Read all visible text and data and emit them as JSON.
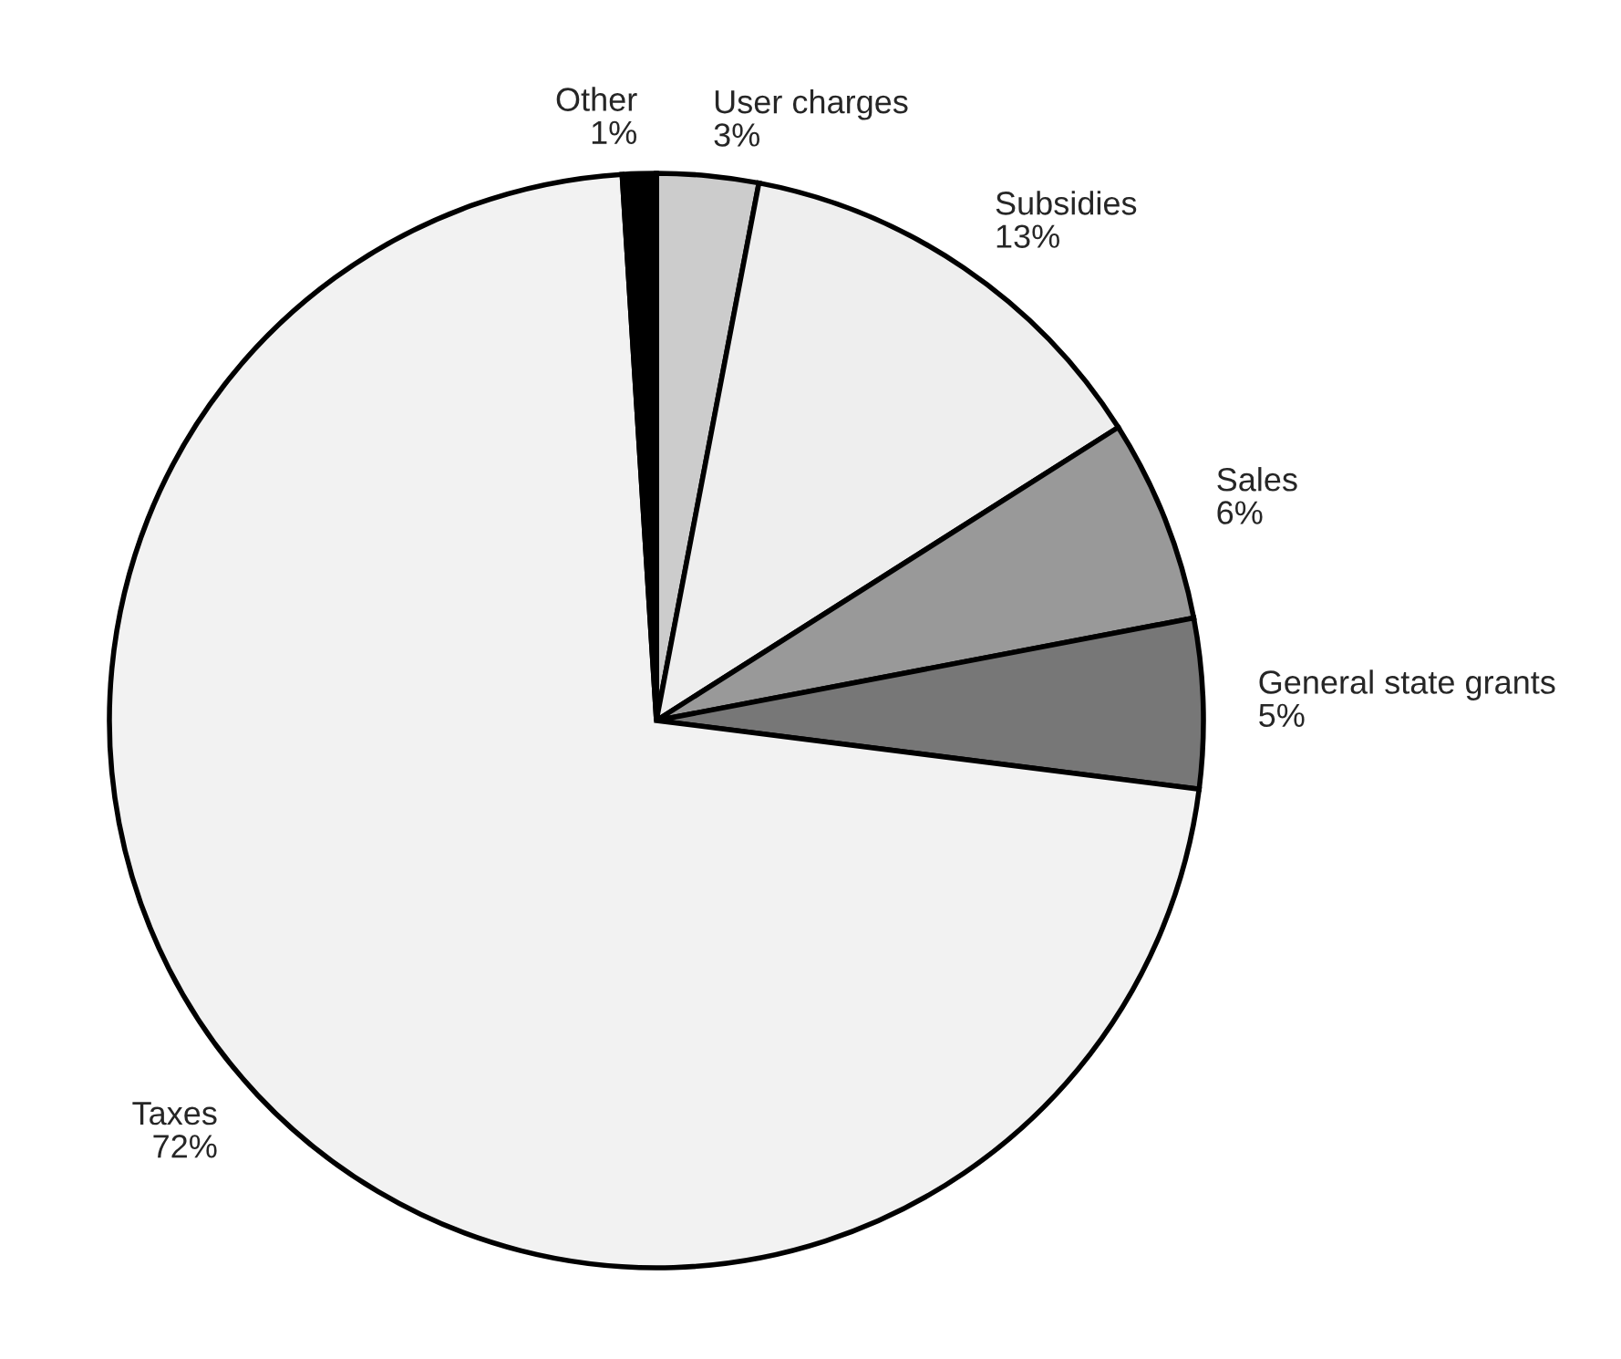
{
  "chart_data": {
    "type": "pie",
    "categories": [
      "User charges",
      "Subsidies",
      "Sales",
      "General state grants",
      "Taxes",
      "Other"
    ],
    "values": [
      3,
      13,
      6,
      5,
      72,
      1
    ],
    "value_labels": [
      "3%",
      "13%",
      "6%",
      "5%",
      "72%",
      "1%"
    ],
    "colors": [
      "#cccccc",
      "#eeeeee",
      "#999999",
      "#777777",
      "#f2f2f2",
      "#000000"
    ],
    "legend": false
  }
}
